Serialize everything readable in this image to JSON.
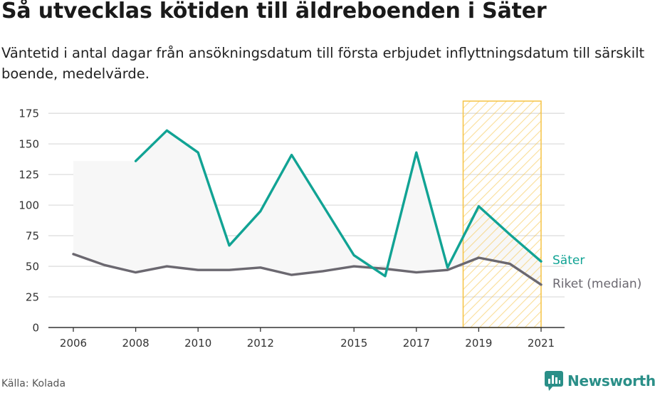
{
  "title": "Så utvecklas kötiden till äldreboenden i Säter",
  "subtitle": "Väntetid i antal dagar från ansökningsdatum till första erbjudet inflyttningsdatum till särskilt boende, medelvärde.",
  "source": "Källa: Kolada",
  "brand": "Newsworthy",
  "colors": {
    "sater": "#11a394",
    "riket": "#6b6870",
    "band": "#f7f7f7",
    "highlight": "#f6c344",
    "grid": "#dddddd",
    "axis": "#333333"
  },
  "chart_data": {
    "type": "line",
    "x": [
      2006,
      2007,
      2008,
      2009,
      2010,
      2011,
      2012,
      2013,
      2014,
      2015,
      2016,
      2017,
      2018,
      2019,
      2020,
      2021
    ],
    "xticks": [
      "2006",
      "2008",
      "2010",
      "2012",
      "2015",
      "2017",
      "2019",
      "2021"
    ],
    "ylim": [
      0,
      185
    ],
    "yticks": [
      "0",
      "25",
      "50",
      "75",
      "100",
      "125",
      "150",
      "175"
    ],
    "grid": true,
    "series": [
      {
        "name": "Säter",
        "color": "#11a394",
        "values": [
          null,
          null,
          136,
          161,
          143,
          67,
          95,
          141,
          100,
          59,
          42,
          143,
          49,
          99,
          76,
          54
        ]
      },
      {
        "name": "Riket (median)",
        "color": "#6b6870",
        "values": [
          60,
          51,
          45,
          50,
          47,
          47,
          49,
          43,
          46,
          50,
          48,
          45,
          47,
          57,
          52,
          35
        ]
      }
    ],
    "band": {
      "description": "shaded range between series",
      "lower": [
        60,
        51,
        45,
        50,
        47,
        47,
        49,
        43,
        46,
        50,
        48,
        45,
        47,
        57,
        52,
        35
      ],
      "upper": [
        136,
        136,
        136,
        161,
        143,
        67,
        95,
        141,
        100,
        59,
        48,
        143,
        49,
        99,
        76,
        54
      ]
    },
    "highlight_range": [
      2018.5,
      2021
    ]
  }
}
